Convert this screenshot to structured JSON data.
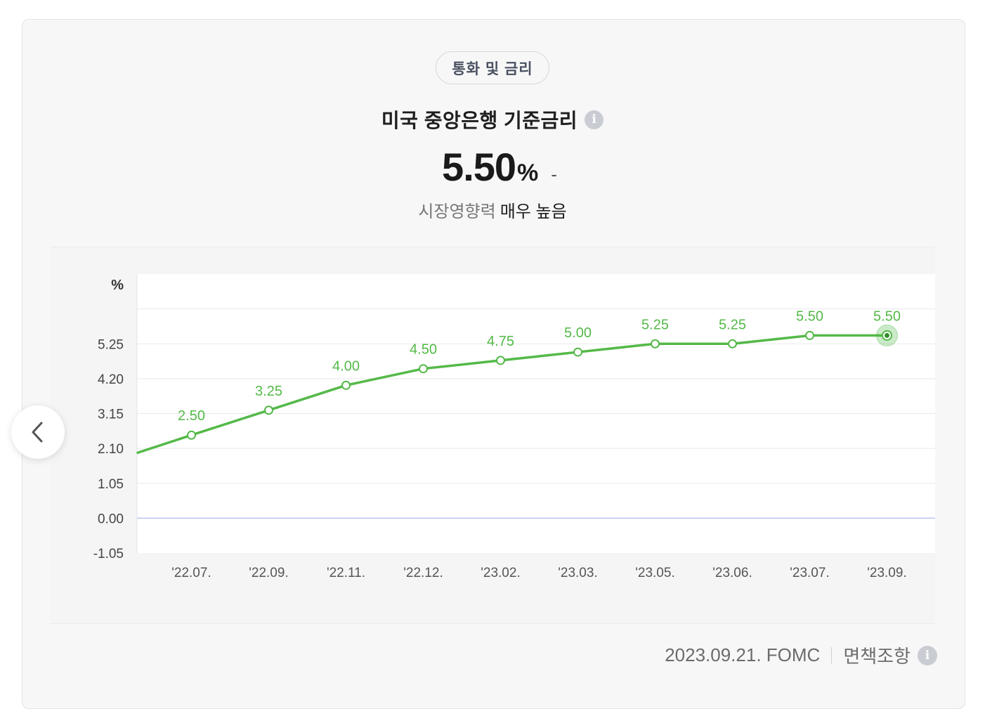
{
  "header": {
    "category": "통화 및 금리",
    "title": "미국 중앙은행 기준금리",
    "value": "5.50",
    "unit": "%",
    "change": "-",
    "impact_label": "시장영향력",
    "impact_value": "매우 높음"
  },
  "footer": {
    "source": "2023.09.21. FOMC",
    "disclaimer": "면책조항"
  },
  "icons": {
    "title_info": "info-icon",
    "prev": "chevron-left-icon",
    "footer_info": "info-icon"
  },
  "colors": {
    "line": "#54b948",
    "zero_line": "#b7c7ef",
    "grid": "#e9e9ec",
    "label": "#54b948"
  },
  "chart_data": {
    "type": "line",
    "ylabel": "%",
    "yticks": [
      "5.25",
      "4.20",
      "3.15",
      "2.10",
      "1.05",
      "0.00",
      "-1.05"
    ],
    "ylim": [
      -1.05,
      7.35
    ],
    "categories": [
      "'22.07.",
      "'22.09.",
      "'22.11.",
      "'22.12.",
      "'23.02.",
      "'23.03.",
      "'23.05.",
      "'23.06.",
      "'23.07.",
      "'23.09."
    ],
    "series": [
      {
        "values": [
          2.5,
          3.25,
          4.0,
          4.5,
          4.75,
          5.0,
          5.25,
          5.25,
          5.5,
          5.5
        ],
        "labels": [
          "2.50",
          "3.25",
          "4.00",
          "4.50",
          "4.75",
          "5.00",
          "5.25",
          "5.25",
          "5.50",
          "5.50"
        ]
      }
    ],
    "leading_value": 1.97,
    "highlight_index": 9,
    "grid": true
  }
}
